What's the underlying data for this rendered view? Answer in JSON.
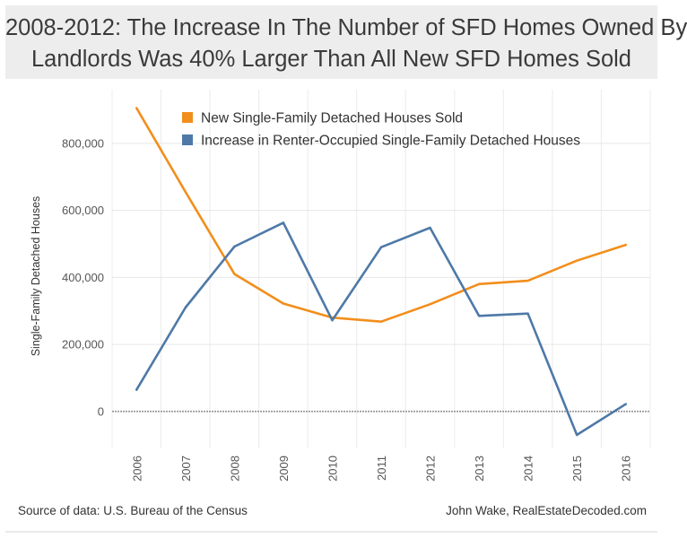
{
  "header": {
    "title_line1": "2008-2012: The Increase In The Number of SFD Homes Owned By",
    "title_line2": "Landlords Was 40% Larger Than All New SFD Homes Sold"
  },
  "footer": {
    "source": "Source of data: U.S. Bureau of the Census",
    "credit": "John Wake, RealEstateDecoded.com"
  },
  "chart_data": {
    "type": "line",
    "title": "2008-2012: The Increase In The Number of SFD Homes Owned By Landlords Was 40% Larger Than All New SFD Homes Sold",
    "xlabel": "",
    "ylabel": "Single-Family Detached Houses",
    "x": [
      "2006",
      "2007",
      "2008",
      "2009",
      "2010",
      "2011",
      "2012",
      "2013",
      "2014",
      "2015",
      "2016"
    ],
    "ylim": [
      -110000,
      960000
    ],
    "yticks": [
      0,
      200000,
      400000,
      600000,
      800000
    ],
    "ytick_labels": [
      "0",
      "200,000",
      "400,000",
      "600,000",
      "800,000"
    ],
    "grid": true,
    "zero_line": true,
    "legend_placement": "top",
    "series": [
      {
        "name": "New Single-Family Detached Houses Sold",
        "color": "#f28e1c",
        "values": [
          905000,
          655000,
          410000,
          322000,
          280000,
          268000,
          320000,
          380000,
          390000,
          450000,
          497000
        ]
      },
      {
        "name": "Increase in Renter-Occupied Single-Family Detached Houses",
        "color": "#4e79a7",
        "values": [
          65000,
          310000,
          492000,
          563000,
          272000,
          490000,
          548000,
          285000,
          292000,
          -70000,
          22000
        ]
      }
    ]
  }
}
